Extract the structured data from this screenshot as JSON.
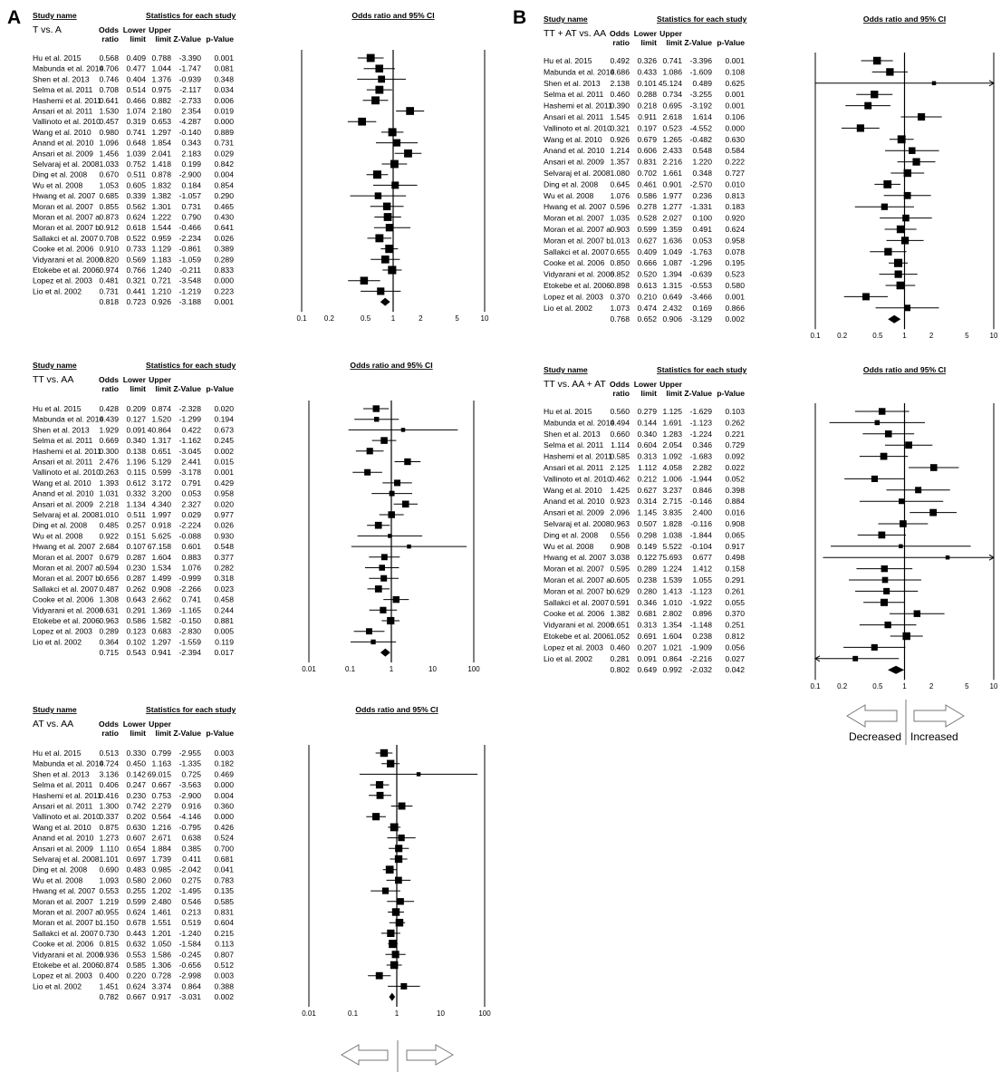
{
  "panel_letters": [
    "A",
    "B"
  ],
  "headers": {
    "study_name": "Study name",
    "statistics": "Statistics for each study",
    "plot_title": "Odds ratio and 95% CI",
    "odds": "Odds",
    "ratio": "ratio",
    "lower": "Lower",
    "upper": "Upper",
    "limit": "limit",
    "zvalue": "Z-Value",
    "pvalue": "p-Value"
  },
  "legend": {
    "decreased": "Decreased",
    "increased": "Increased"
  },
  "studies": [
    "Hu et al. 2015",
    "Mabunda et al. 2014",
    "Shen et al. 2013",
    "Selma et al. 2011",
    "Hashemi et al. 2011",
    "Ansari et al. 2011",
    "Vallinoto et al. 2010",
    "Wang et al. 2010",
    "Anand et al. 2010",
    "Ansari et al. 2009",
    "Selvaraj et al. 2008",
    "Ding et al. 2008",
    "Wu et al. 2008",
    "Hwang et al. 2007",
    "Moran et al. 2007",
    "Moran et al. 2007 a",
    "Moran et al. 2007 b",
    "Sallakci et al. 2007",
    "Cooke et al. 2006",
    "Vidyarani et al. 2006",
    "Etokebe et al. 2006",
    "Lopez et al. 2003",
    "Lio et al. 2002"
  ],
  "chart_data": [
    {
      "type": "forest",
      "comparison": "T vs. A",
      "xscale": "log",
      "xticks": [
        "0.1",
        "0.2",
        "0.5",
        "1",
        "2",
        "5",
        "10"
      ],
      "rows": [
        [
          "0.568",
          "0.409",
          "0.788",
          "-3.390",
          "0.001"
        ],
        [
          "0.706",
          "0.477",
          "1.044",
          "-1.747",
          "0.081"
        ],
        [
          "0.746",
          "0.404",
          "1.376",
          "-0.939",
          "0.348"
        ],
        [
          "0.708",
          "0.514",
          "0.975",
          "-2.117",
          "0.034"
        ],
        [
          "0.641",
          "0.466",
          "0.882",
          "-2.733",
          "0.006"
        ],
        [
          "1.530",
          "1.074",
          "2.180",
          "2.354",
          "0.019"
        ],
        [
          "0.457",
          "0.319",
          "0.653",
          "-4.287",
          "0.000"
        ],
        [
          "0.980",
          "0.741",
          "1.297",
          "-0.140",
          "0.889"
        ],
        [
          "1.096",
          "0.648",
          "1.854",
          "0.343",
          "0.731"
        ],
        [
          "1.456",
          "1.039",
          "2.041",
          "2.183",
          "0.029"
        ],
        [
          "1.033",
          "0.752",
          "1.418",
          "0.199",
          "0.842"
        ],
        [
          "0.670",
          "0.511",
          "0.878",
          "-2.900",
          "0.004"
        ],
        [
          "1.053",
          "0.605",
          "1.832",
          "0.184",
          "0.854"
        ],
        [
          "0.685",
          "0.339",
          "1.382",
          "-1.057",
          "0.290"
        ],
        [
          "0.855",
          "0.562",
          "1.301",
          "0.731",
          "0.465"
        ],
        [
          "0.873",
          "0.624",
          "1.222",
          "0.790",
          "0.430"
        ],
        [
          "0.912",
          "0.618",
          "1.544",
          "-0.466",
          "0.641"
        ],
        [
          "0.708",
          "0.522",
          "0.959",
          "-2.234",
          "0.026"
        ],
        [
          "0.910",
          "0.733",
          "1.129",
          "-0.861",
          "0.389"
        ],
        [
          "0.820",
          "0.569",
          "1.183",
          "-1.059",
          "0.289"
        ],
        [
          "0.974",
          "0.766",
          "1.240",
          "-0.211",
          "0.833"
        ],
        [
          "0.481",
          "0.321",
          "0.721",
          "-3.548",
          "0.000"
        ],
        [
          "0.731",
          "0.441",
          "1.210",
          "-1.219",
          "0.223"
        ]
      ],
      "summary": [
        "0.818",
        "0.723",
        "0.926",
        "-3.188",
        "0.001"
      ]
    },
    {
      "type": "forest",
      "comparison": "TT vs. AA",
      "xscale": "log",
      "xticks": [
        "0.01",
        "0.1",
        "1",
        "10",
        "100"
      ],
      "rows": [
        [
          "0.428",
          "0.209",
          "0.874",
          "-2.328",
          "0.020"
        ],
        [
          "0.439",
          "0.127",
          "1.520",
          "-1.299",
          "0.194"
        ],
        [
          "1.929",
          "0.091",
          "40.864",
          "0.422",
          "0.673"
        ],
        [
          "0.669",
          "0.340",
          "1.317",
          "-1.162",
          "0.245"
        ],
        [
          "0.300",
          "0.138",
          "0.651",
          "-3.045",
          "0.002"
        ],
        [
          "2.476",
          "1.196",
          "5.129",
          "2.441",
          "0.015"
        ],
        [
          "0.263",
          "0.115",
          "0.599",
          "-3.178",
          "0.001"
        ],
        [
          "1.393",
          "0.612",
          "3.172",
          "0.791",
          "0.429"
        ],
        [
          "1.031",
          "0.332",
          "3.200",
          "0.053",
          "0.958"
        ],
        [
          "2.218",
          "1.134",
          "4.340",
          "2.327",
          "0.020"
        ],
        [
          "1.010",
          "0.511",
          "1.997",
          "0.029",
          "0.977"
        ],
        [
          "0.485",
          "0.257",
          "0.918",
          "-2.224",
          "0.026"
        ],
        [
          "0.922",
          "0.151",
          "5.625",
          "-0.088",
          "0.930"
        ],
        [
          "2.684",
          "0.107",
          "67.158",
          "0.601",
          "0.548"
        ],
        [
          "0.679",
          "0.287",
          "1.604",
          "0.883",
          "0.377"
        ],
        [
          "0.594",
          "0.230",
          "1.534",
          "1.076",
          "0.282"
        ],
        [
          "0.656",
          "0.287",
          "1.499",
          "-0.999",
          "0.318"
        ],
        [
          "0.487",
          "0.262",
          "0.908",
          "-2.266",
          "0.023"
        ],
        [
          "1.308",
          "0.643",
          "2.662",
          "0.741",
          "0.458"
        ],
        [
          "0.631",
          "0.291",
          "1.369",
          "-1.165",
          "0.244"
        ],
        [
          "0.963",
          "0.586",
          "1.582",
          "-0.150",
          "0.881"
        ],
        [
          "0.289",
          "0.123",
          "0.683",
          "-2.830",
          "0.005"
        ],
        [
          "0.364",
          "0.102",
          "1.297",
          "-1.559",
          "0.119"
        ]
      ],
      "summary": [
        "0.715",
        "0.543",
        "0.941",
        "-2.394",
        "0.017"
      ]
    },
    {
      "type": "forest",
      "comparison": "AT vs. AA",
      "xscale": "log",
      "xticks": [
        "0.01",
        "0.1",
        "1",
        "10",
        "100"
      ],
      "rows": [
        [
          "0.513",
          "0.330",
          "0.799",
          "-2.955",
          "0.003"
        ],
        [
          "0.724",
          "0.450",
          "1.163",
          "-1.335",
          "0.182"
        ],
        [
          "3.136",
          "0.142",
          "69.015",
          "0.725",
          "0.469"
        ],
        [
          "0.406",
          "0.247",
          "0.667",
          "-3.563",
          "0.000"
        ],
        [
          "0.416",
          "0.230",
          "0.753",
          "-2.900",
          "0.004"
        ],
        [
          "1.300",
          "0.742",
          "2.279",
          "0.916",
          "0.360"
        ],
        [
          "0.337",
          "0.202",
          "0.564",
          "-4.146",
          "0.000"
        ],
        [
          "0.875",
          "0.630",
          "1.216",
          "-0.795",
          "0.426"
        ],
        [
          "1.273",
          "0.607",
          "2.671",
          "0.638",
          "0.524"
        ],
        [
          "1.110",
          "0.654",
          "1.884",
          "0.385",
          "0.700"
        ],
        [
          "1.101",
          "0.697",
          "1.739",
          "0.411",
          "0.681"
        ],
        [
          "0.690",
          "0.483",
          "0.985",
          "-2.042",
          "0.041"
        ],
        [
          "1.093",
          "0.580",
          "2.060",
          "0.275",
          "0.783"
        ],
        [
          "0.553",
          "0.255",
          "1.202",
          "-1.495",
          "0.135"
        ],
        [
          "1.219",
          "0.599",
          "2.480",
          "0.546",
          "0.585"
        ],
        [
          "0.955",
          "0.624",
          "1.461",
          "0.213",
          "0.831"
        ],
        [
          "1.150",
          "0.678",
          "1.551",
          "0.519",
          "0.604"
        ],
        [
          "0.730",
          "0.443",
          "1.201",
          "-1.240",
          "0.215"
        ],
        [
          "0.815",
          "0.632",
          "1.050",
          "-1.584",
          "0.113"
        ],
        [
          "0.936",
          "0.553",
          "1.586",
          "-0.245",
          "0.807"
        ],
        [
          "0.874",
          "0.585",
          "1.306",
          "-0.656",
          "0.512"
        ],
        [
          "0.400",
          "0.220",
          "0.728",
          "-2.998",
          "0.003"
        ],
        [
          "1.451",
          "0.624",
          "3.374",
          "0.864",
          "0.388"
        ]
      ],
      "summary": [
        "0.782",
        "0.667",
        "0.917",
        "-3.031",
        "0.002"
      ]
    },
    {
      "type": "forest",
      "comparison": "TT + AT vs. AA",
      "xscale": "log",
      "xticks": [
        "0.1",
        "0.2",
        "0.5",
        "1",
        "2",
        "5",
        "10"
      ],
      "rows": [
        [
          "0.492",
          "0.326",
          "0.741",
          "-3.396",
          "0.001"
        ],
        [
          "0.686",
          "0.433",
          "1.086",
          "-1.609",
          "0.108"
        ],
        [
          "2.138",
          "0.101",
          "45.124",
          "0.489",
          "0.625"
        ],
        [
          "0.460",
          "0.288",
          "0.734",
          "-3.255",
          "0.001"
        ],
        [
          "0.390",
          "0.218",
          "0.695",
          "-3.192",
          "0.001"
        ],
        [
          "1.545",
          "0.911",
          "2.618",
          "1.614",
          "0.106"
        ],
        [
          "0.321",
          "0.197",
          "0.523",
          "-4.552",
          "0.000"
        ],
        [
          "0.926",
          "0.679",
          "1.265",
          "-0.482",
          "0.630"
        ],
        [
          "1.214",
          "0.606",
          "2.433",
          "0.548",
          "0.584"
        ],
        [
          "1.357",
          "0.831",
          "2.216",
          "1.220",
          "0.222"
        ],
        [
          "1.080",
          "0.702",
          "1.661",
          "0.348",
          "0.727"
        ],
        [
          "0.645",
          "0.461",
          "0.901",
          "-2.570",
          "0.010"
        ],
        [
          "1.076",
          "0.586",
          "1.977",
          "0.236",
          "0.813"
        ],
        [
          "0.596",
          "0.278",
          "1.277",
          "-1.331",
          "0.183"
        ],
        [
          "1.035",
          "0.528",
          "2.027",
          "0.100",
          "0.920"
        ],
        [
          "0.903",
          "0.599",
          "1.359",
          "0.491",
          "0.624"
        ],
        [
          "1.013",
          "0.627",
          "1.636",
          "0.053",
          "0.958"
        ],
        [
          "0.655",
          "0.409",
          "1.049",
          "-1.763",
          "0.078"
        ],
        [
          "0.850",
          "0.666",
          "1.087",
          "-1.296",
          "0.195"
        ],
        [
          "0.852",
          "0.520",
          "1.394",
          "-0.639",
          "0.523"
        ],
        [
          "0.898",
          "0.613",
          "1.315",
          "-0.553",
          "0.580"
        ],
        [
          "0.370",
          "0.210",
          "0.649",
          "-3.466",
          "0.001"
        ],
        [
          "1.073",
          "0.474",
          "2.432",
          "0.169",
          "0.866"
        ]
      ],
      "summary": [
        "0.768",
        "0.652",
        "0.906",
        "-3.129",
        "0.002"
      ]
    },
    {
      "type": "forest",
      "comparison": "TT vs. AA + AT",
      "xscale": "log",
      "xticks": [
        "0.1",
        "0.2",
        "0.5",
        "1",
        "2",
        "5",
        "10"
      ],
      "rows": [
        [
          "0.560",
          "0.279",
          "1.125",
          "-1.629",
          "0.103"
        ],
        [
          "0.494",
          "0.144",
          "1.691",
          "-1.123",
          "0.262"
        ],
        [
          "0.660",
          "0.340",
          "1.283",
          "-1.224",
          "0.221"
        ],
        [
          "1.114",
          "0.604",
          "2.054",
          "0.346",
          "0.729"
        ],
        [
          "0.585",
          "0.313",
          "1.092",
          "-1.683",
          "0.092"
        ],
        [
          "2.125",
          "1.112",
          "4.058",
          "2.282",
          "0.022"
        ],
        [
          "0.462",
          "0.212",
          "1.006",
          "-1.944",
          "0.052"
        ],
        [
          "1.425",
          "0.627",
          "3.237",
          "0.846",
          "0.398"
        ],
        [
          "0.923",
          "0.314",
          "2.715",
          "-0.146",
          "0.884"
        ],
        [
          "2.096",
          "1.145",
          "3.835",
          "2.400",
          "0.016"
        ],
        [
          "0.963",
          "0.507",
          "1.828",
          "-0.116",
          "0.908"
        ],
        [
          "0.556",
          "0.298",
          "1.038",
          "-1.844",
          "0.065"
        ],
        [
          "0.908",
          "0.149",
          "5.522",
          "-0.104",
          "0.917"
        ],
        [
          "3.038",
          "0.122",
          "75.693",
          "0.677",
          "0.498"
        ],
        [
          "0.595",
          "0.289",
          "1.224",
          "1.412",
          "0.158"
        ],
        [
          "0.605",
          "0.238",
          "1.539",
          "1.055",
          "0.291"
        ],
        [
          "0.629",
          "0.280",
          "1.413",
          "-1.123",
          "0.261"
        ],
        [
          "0.591",
          "0.346",
          "1.010",
          "-1.922",
          "0.055"
        ],
        [
          "1.382",
          "0.681",
          "2.802",
          "0.896",
          "0.370"
        ],
        [
          "0.651",
          "0.313",
          "1.354",
          "-1.148",
          "0.251"
        ],
        [
          "1.052",
          "0.691",
          "1.604",
          "0.238",
          "0.812"
        ],
        [
          "0.460",
          "0.207",
          "1.021",
          "-1.909",
          "0.056"
        ],
        [
          "0.281",
          "0.091",
          "0.864",
          "-2.216",
          "0.027"
        ]
      ],
      "summary": [
        "0.802",
        "0.649",
        "0.992",
        "-2.032",
        "0.042"
      ]
    }
  ]
}
